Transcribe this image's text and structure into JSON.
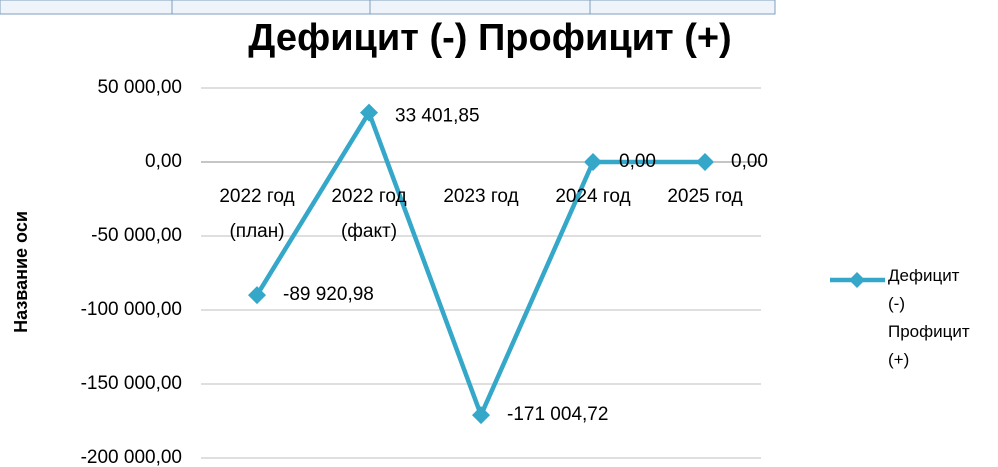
{
  "chart_data": {
    "type": "line",
    "title": "Дефицит (-) Профицит (+)",
    "y_label": "Название оси",
    "categories": [
      "2022 год (план)",
      "2022 год (факт)",
      "2023 год",
      "2024 год",
      "2025 год"
    ],
    "series": [
      {
        "name": "Дефицит (-) Профицит (+)",
        "color": "#35a7c9",
        "values": [
          -89920.98,
          33401.85,
          -171004.72,
          0,
          0
        ],
        "value_labels": [
          "-89 920,98",
          "33 401,85",
          "-171 004,72",
          "0,00",
          "0,00"
        ]
      }
    ],
    "ylim": [
      -200000,
      50000
    ],
    "yticks": [
      {
        "value": 50000,
        "label": "50 000,00"
      },
      {
        "value": 0,
        "label": "0,00"
      },
      {
        "value": -50000,
        "label": "-50 000,00"
      },
      {
        "value": -100000,
        "label": "-100 000,00"
      },
      {
        "value": -150000,
        "label": "-150 000,00"
      },
      {
        "value": -200000,
        "label": "-200 000,00"
      }
    ],
    "grid": true,
    "legend": "right"
  }
}
